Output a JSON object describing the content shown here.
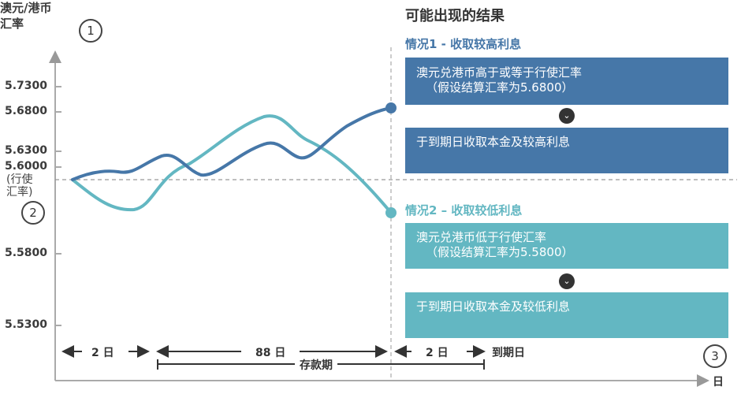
{
  "y_axis": {
    "title_line1": "澳元/港币",
    "title_line2": "汇率",
    "ticks": [
      "5.7300",
      "5.6800",
      "5.6300",
      "5.6000",
      "5.5800",
      "5.5300"
    ],
    "strike_label_line1": "(行使",
    "strike_label_line2": "汇率)"
  },
  "markers": {
    "m1": "1",
    "m2": "2",
    "m3": "3"
  },
  "x_axis": {
    "unit": "日"
  },
  "timeline": {
    "seg1": "2 日",
    "seg2": "88 日",
    "seg3": "2 日",
    "maturity": "到期日",
    "deposit_period": "存款期"
  },
  "outcomes": {
    "title": "可能出现的结果",
    "scenario1": {
      "label": "情况1 - 收取较高利息",
      "box1_line1": "澳元兑港币高于或等于行使汇率",
      "box1_line2": "（假设结算汇率为5.6800）",
      "box2": "于到期日收取本金及较高利息",
      "color": "#4677a8"
    },
    "scenario2": {
      "label": "情况2 – 收取较低利息",
      "box1_line1": "澳元兑港币低于行使汇率",
      "box1_line2": "（假设结算汇率为5.5800）",
      "box2": "于到期日收取本金及较低利息",
      "color": "#63b7c2"
    }
  },
  "chart_data": {
    "type": "line",
    "y_ticks": [
      5.73,
      5.68,
      5.63,
      5.6,
      5.58,
      5.53
    ],
    "strike_rate": 5.6,
    "series": [
      {
        "color": "#4677a8",
        "end_value": 5.68
      },
      {
        "color": "#63b7c2",
        "end_value": 5.58
      }
    ]
  }
}
